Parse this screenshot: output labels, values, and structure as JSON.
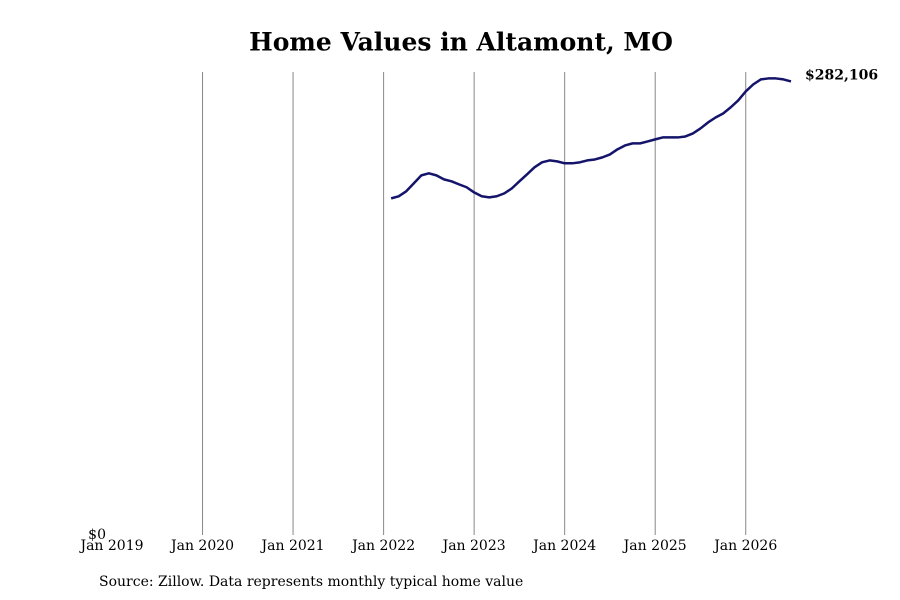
{
  "chart_data": {
    "type": "line",
    "title": "Home Values in Altamont, MO",
    "source": "Source: Zillow. Data represents monthly typical home value",
    "x": [
      "2022-02",
      "2022-03",
      "2022-04",
      "2022-05",
      "2022-06",
      "2022-07",
      "2022-08",
      "2022-09",
      "2022-10",
      "2022-11",
      "2022-12",
      "2023-01",
      "2023-02",
      "2023-03",
      "2023-04",
      "2023-05",
      "2023-06",
      "2023-07",
      "2023-08",
      "2023-09",
      "2023-10",
      "2023-11",
      "2023-12",
      "2024-01",
      "2024-02",
      "2024-03",
      "2024-04",
      "2024-05",
      "2024-06",
      "2024-07",
      "2024-08",
      "2024-09",
      "2024-10",
      "2024-11",
      "2024-12",
      "2025-01",
      "2025-02",
      "2025-03",
      "2025-04",
      "2025-05",
      "2025-06",
      "2025-07",
      "2025-08",
      "2025-09",
      "2025-10",
      "2025-11",
      "2025-12",
      "2026-01",
      "2026-02",
      "2026-03",
      "2026-04",
      "2026-05",
      "2026-06",
      "2026-07"
    ],
    "series": [
      {
        "name": "Home value",
        "color": "#14146b",
        "values": [
          209400,
          210700,
          213800,
          218700,
          223700,
          225000,
          223700,
          221200,
          220000,
          218100,
          216300,
          213100,
          210700,
          210000,
          210700,
          212500,
          215600,
          220000,
          224300,
          228700,
          231800,
          233000,
          232400,
          231200,
          231200,
          231800,
          233000,
          233600,
          234900,
          236700,
          239900,
          242300,
          243600,
          243600,
          244800,
          246100,
          247300,
          247300,
          247300,
          247900,
          249800,
          252900,
          256600,
          259700,
          262200,
          266000,
          270300,
          275900,
          280300,
          283400,
          284000,
          284000,
          283400,
          282106
        ],
        "value_labels": [
          null,
          null,
          null,
          null,
          null,
          null,
          null,
          null,
          null,
          null,
          null,
          null,
          null,
          null,
          null,
          null,
          null,
          null,
          null,
          null,
          null,
          null,
          null,
          null,
          null,
          null,
          null,
          null,
          null,
          null,
          null,
          null,
          null,
          null,
          null,
          null,
          null,
          null,
          null,
          null,
          null,
          null,
          null,
          null,
          null,
          null,
          null,
          null,
          null,
          null,
          null,
          null,
          null,
          "$282,106"
        ]
      }
    ],
    "xlim": [
      "2019-01",
      "2026-07"
    ],
    "xticks": [
      {
        "value": "2019-01",
        "label": "Jan 2019"
      },
      {
        "value": "2020-01",
        "label": "Jan 2020"
      },
      {
        "value": "2021-01",
        "label": "Jan 2021"
      },
      {
        "value": "2022-01",
        "label": "Jan 2022"
      },
      {
        "value": "2023-01",
        "label": "Jan 2023"
      },
      {
        "value": "2024-01",
        "label": "Jan 2024"
      },
      {
        "value": "2025-01",
        "label": "Jan 2025"
      },
      {
        "value": "2026-01",
        "label": "Jan 2026"
      }
    ],
    "ylim": [
      0,
      288000
    ],
    "yticks": [
      {
        "value": 0,
        "label": "$0"
      }
    ],
    "grid": "x"
  }
}
